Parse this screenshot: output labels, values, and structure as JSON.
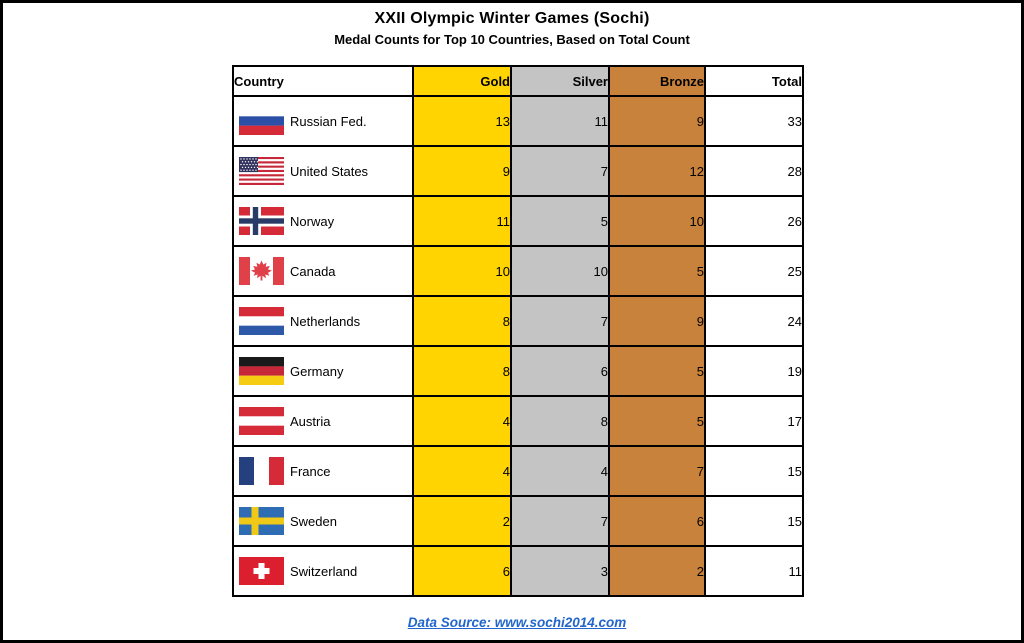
{
  "page": {
    "title": "XXII Olympic Winter Games (Sochi)",
    "subtitle": "Medal Counts for Top 10 Countries, Based on Total Count",
    "footer_link": "Data Source: www.sochi2014.com"
  },
  "colors": {
    "gold": "#FFD400",
    "silver": "#C4C4C4",
    "bronze": "#C8823B",
    "link_blue": "#2166CC",
    "border": "#000000"
  },
  "table": {
    "headers": [
      "Country",
      "Gold",
      "Silver",
      "Bronze",
      "Total"
    ],
    "rows": [
      {
        "country": "Russian Fed.",
        "flag": "russia",
        "gold": 13,
        "silver": 11,
        "bronze": 9,
        "total": 33
      },
      {
        "country": "United States",
        "flag": "united-states",
        "gold": 9,
        "silver": 7,
        "bronze": 12,
        "total": 28
      },
      {
        "country": "Norway",
        "flag": "norway",
        "gold": 11,
        "silver": 5,
        "bronze": 10,
        "total": 26
      },
      {
        "country": "Canada",
        "flag": "canada",
        "gold": 10,
        "silver": 10,
        "bronze": 5,
        "total": 25
      },
      {
        "country": "Netherlands",
        "flag": "netherlands",
        "gold": 8,
        "silver": 7,
        "bronze": 9,
        "total": 24
      },
      {
        "country": "Germany",
        "flag": "germany",
        "gold": 8,
        "silver": 6,
        "bronze": 5,
        "total": 19
      },
      {
        "country": "Austria",
        "flag": "austria",
        "gold": 4,
        "silver": 8,
        "bronze": 5,
        "total": 17
      },
      {
        "country": "France",
        "flag": "france",
        "gold": 4,
        "silver": 4,
        "bronze": 7,
        "total": 15
      },
      {
        "country": "Sweden",
        "flag": "sweden",
        "gold": 2,
        "silver": 7,
        "bronze": 6,
        "total": 15
      },
      {
        "country": "Switzerland",
        "flag": "switzerland",
        "gold": 6,
        "silver": 3,
        "bronze": 2,
        "total": 11
      }
    ]
  },
  "flags": {
    "russia": {
      "type": "hstripes",
      "colors": [
        "#FFFFFF",
        "#2B4EA6",
        "#D52B39"
      ]
    },
    "united-states": {
      "type": "usa",
      "canton": "#32325F",
      "stripe": "#C62839",
      "white": "#FFFFFF"
    },
    "norway": {
      "type": "nordic",
      "field": "#D52B39",
      "cross": "#2A3A66",
      "fimbriation": "#FFFFFF"
    },
    "canada": {
      "type": "canada",
      "red": "#E04048",
      "white": "#FFFFFF"
    },
    "netherlands": {
      "type": "hstripes",
      "colors": [
        "#D52B39",
        "#FFFFFF",
        "#2D59A8"
      ]
    },
    "germany": {
      "type": "hstripes",
      "colors": [
        "#1A1A1A",
        "#C62839",
        "#F5CC12"
      ]
    },
    "austria": {
      "type": "hstripes",
      "colors": [
        "#D52B39",
        "#FFFFFF",
        "#D52B39"
      ]
    },
    "france": {
      "type": "vstripes",
      "colors": [
        "#24407E",
        "#FFFFFF",
        "#D52B39"
      ]
    },
    "sweden": {
      "type": "nordic",
      "field": "#2E6DB4",
      "cross": "#F0C818",
      "fimbriation": null
    },
    "switzerland": {
      "type": "swiss",
      "red": "#DC1F2F",
      "white": "#FFFFFF"
    }
  },
  "chart_data": {
    "type": "table",
    "title": "XXII Olympic Winter Games (Sochi)",
    "subtitle": "Medal Counts for Top 10 Countries, Based on Total Count",
    "columns": [
      "Country",
      "Gold",
      "Silver",
      "Bronze",
      "Total"
    ],
    "rows": [
      [
        "Russian Fed.",
        13,
        11,
        9,
        33
      ],
      [
        "United States",
        9,
        7,
        12,
        28
      ],
      [
        "Norway",
        11,
        5,
        10,
        26
      ],
      [
        "Canada",
        10,
        10,
        5,
        25
      ],
      [
        "Netherlands",
        8,
        7,
        9,
        24
      ],
      [
        "Germany",
        8,
        6,
        5,
        19
      ],
      [
        "Austria",
        4,
        8,
        5,
        17
      ],
      [
        "France",
        4,
        4,
        7,
        15
      ],
      [
        "Sweden",
        2,
        7,
        6,
        15
      ],
      [
        "Switzerland",
        6,
        3,
        2,
        11
      ]
    ],
    "source_note": "Data Source: www.sochi2014.com",
    "column_fill_colors": {
      "Gold": "#FFD400",
      "Silver": "#C4C4C4",
      "Bronze": "#C8823B",
      "Total": "#FFFFFF"
    }
  }
}
